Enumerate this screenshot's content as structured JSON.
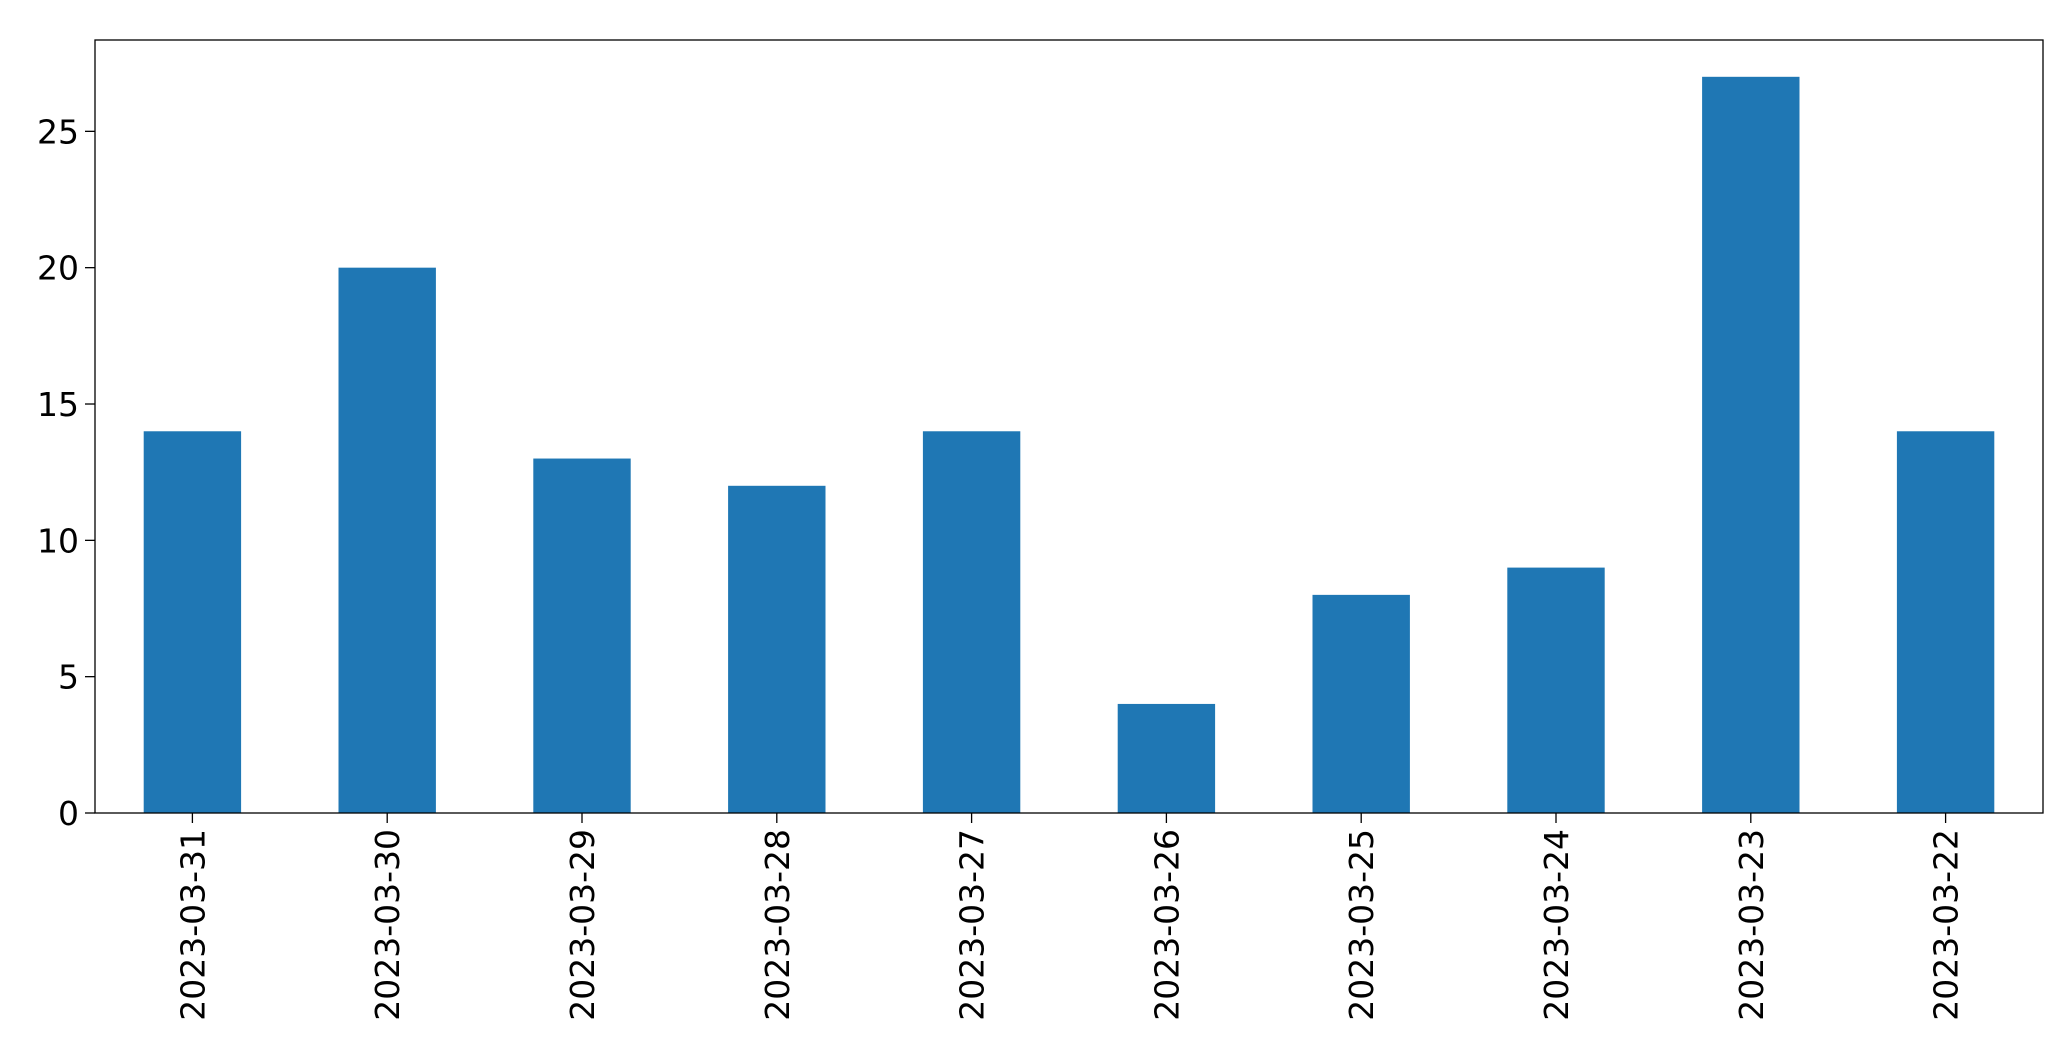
{
  "chart_data": {
    "type": "bar",
    "title": "",
    "xlabel": "",
    "ylabel": "",
    "categories": [
      "2023-03-31",
      "2023-03-30",
      "2023-03-29",
      "2023-03-28",
      "2023-03-27",
      "2023-03-26",
      "2023-03-25",
      "2023-03-24",
      "2023-03-23",
      "2023-03-22"
    ],
    "values": [
      14,
      20,
      13,
      12,
      14,
      4,
      8,
      9,
      27,
      14
    ],
    "ylim": [
      0,
      28.35
    ],
    "yticks": [
      "0",
      "5",
      "10",
      "15",
      "20",
      "25"
    ],
    "bar_color": "#1f77b4",
    "grid": false,
    "legend": "none"
  }
}
